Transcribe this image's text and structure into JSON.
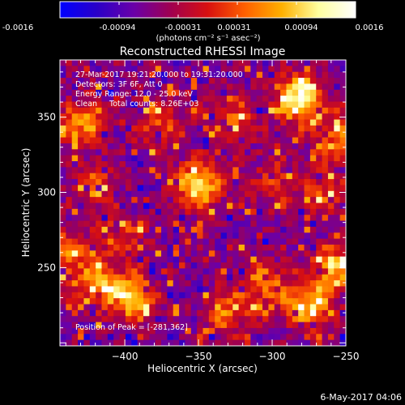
{
  "colorbar": {
    "ticks": [
      "-0.0016",
      "-0.00094",
      "-0.00031",
      "0.00031",
      "0.00094",
      "0.0016"
    ],
    "unit_label": "(photons cm⁻² s⁻¹ asec⁻²)",
    "stops": [
      "#0000ff",
      "#2a00c8",
      "#6a00a8",
      "#a00050",
      "#d81010",
      "#ff6000",
      "#ffb000",
      "#ffffa0",
      "#ffffff"
    ]
  },
  "plot": {
    "title": "Reconstructed RHESSI Image",
    "info_lines": [
      "27-Mar-2017 19:21:20.000 to 19:31:20.000",
      "Detectors: 3F 6F, Att 0",
      "Energy Range: 12.0 - 25.0 keV",
      "Clean     Total counts: 8.26E+03"
    ],
    "peak_label": "Position of Peak = [-281,362]",
    "timestamp": "6-May-2017 04:06"
  },
  "chart_data": {
    "type": "heatmap",
    "title": "Reconstructed RHESSI Image",
    "xlabel": "Heliocentric X (arcsec)",
    "ylabel": "Heliocentric Y (arcsec)",
    "xlim": [
      -444,
      -250
    ],
    "ylim": [
      198,
      388
    ],
    "x_ticks": [
      -400,
      -350,
      -300,
      -250
    ],
    "y_ticks": [
      250,
      300,
      350
    ],
    "colorbar_range": [
      -0.0016,
      0.0016
    ],
    "peak_position": [
      -281,
      362
    ],
    "hotspots": [
      {
        "x": -281,
        "y": 362,
        "strength": 1.0
      },
      {
        "x": -350,
        "y": 305,
        "strength": 0.85
      },
      {
        "x": -395,
        "y": 230,
        "strength": 0.8
      },
      {
        "x": -428,
        "y": 347,
        "strength": 0.6
      },
      {
        "x": -375,
        "y": 345,
        "strength": 0.45
      },
      {
        "x": -325,
        "y": 350,
        "strength": 0.45
      },
      {
        "x": -300,
        "y": 305,
        "strength": 0.4
      },
      {
        "x": -275,
        "y": 225,
        "strength": 0.75
      },
      {
        "x": -258,
        "y": 250,
        "strength": 0.65
      },
      {
        "x": -305,
        "y": 240,
        "strength": 0.55
      },
      {
        "x": -330,
        "y": 220,
        "strength": 0.5
      },
      {
        "x": -420,
        "y": 240,
        "strength": 0.6
      },
      {
        "x": -440,
        "y": 260,
        "strength": 0.5
      },
      {
        "x": -400,
        "y": 270,
        "strength": 0.35
      },
      {
        "x": -420,
        "y": 305,
        "strength": 0.35
      },
      {
        "x": -265,
        "y": 300,
        "strength": 0.4
      },
      {
        "x": -255,
        "y": 335,
        "strength": 0.5
      }
    ]
  }
}
